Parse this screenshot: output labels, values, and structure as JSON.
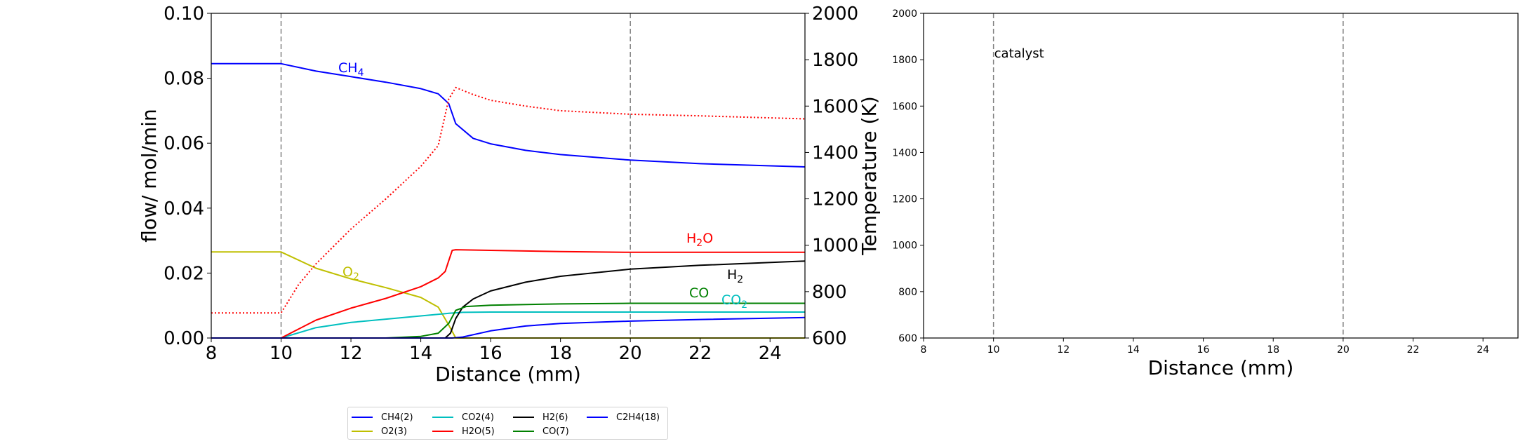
{
  "chart_data": [
    {
      "type": "line",
      "xlabel": "Distance (mm)",
      "ylabel_left": "flow/ mol/min",
      "ylabel_right": "Temperature (K)",
      "xlim": [
        8,
        25
      ],
      "ylim_left": [
        0.0,
        0.1
      ],
      "ylim_right": [
        600,
        2000
      ],
      "x_ticks": [
        "8",
        "10",
        "12",
        "14",
        "16",
        "18",
        "20",
        "22",
        "24"
      ],
      "y_ticks_left": [
        "0.00",
        "0.02",
        "0.04",
        "0.06",
        "0.08",
        "0.10"
      ],
      "y_ticks_right": [
        "600",
        "800",
        "1000",
        "1200",
        "1400",
        "1600",
        "1800",
        "2000"
      ],
      "vlines": [
        10,
        20
      ],
      "series": [
        {
          "name": "CH4(2)",
          "label": "CH",
          "sub": "4",
          "color": "#0000ff",
          "style": "solid",
          "x": [
            8,
            10,
            11,
            12,
            13,
            14,
            14.5,
            14.8,
            15,
            15.5,
            16,
            17,
            18,
            20,
            22,
            25
          ],
          "y": [
            0.0845,
            0.0845,
            0.0822,
            0.0805,
            0.0788,
            0.0768,
            0.0752,
            0.0722,
            0.066,
            0.0615,
            0.0598,
            0.0578,
            0.0565,
            0.0548,
            0.0537,
            0.0527
          ]
        },
        {
          "name": "O2(3)",
          "label": "O",
          "sub": "2",
          "color": "#bfbf00",
          "style": "solid",
          "x": [
            8,
            10,
            11,
            12,
            13,
            14,
            14.5,
            14.8,
            15,
            25
          ],
          "y": [
            0.0265,
            0.0265,
            0.0215,
            0.0182,
            0.0155,
            0.0125,
            0.0095,
            0.004,
            0.0,
            0.0
          ]
        },
        {
          "name": "CO2(4)",
          "label": "CO",
          "sub": "2",
          "color": "#00bfbf",
          "style": "solid",
          "x": [
            8,
            10,
            11,
            12,
            13,
            14,
            14.8,
            15.2,
            16,
            18,
            20,
            25
          ],
          "y": [
            0.0,
            0.0,
            0.0032,
            0.0048,
            0.0058,
            0.0068,
            0.0076,
            0.0079,
            0.008,
            0.008,
            0.008,
            0.008
          ]
        },
        {
          "name": "H2O(5)",
          "label": "H",
          "sub": "2",
          "tail": "O",
          "color": "#ff0000",
          "style": "solid",
          "x": [
            8,
            10,
            11,
            12,
            13,
            14,
            14.5,
            14.7,
            14.8,
            14.9,
            15,
            16,
            18,
            20,
            22,
            25
          ],
          "y": [
            0.0,
            0.0,
            0.0055,
            0.0092,
            0.0122,
            0.0158,
            0.0185,
            0.0205,
            0.0238,
            0.027,
            0.0272,
            0.027,
            0.0266,
            0.0264,
            0.0264,
            0.0264
          ]
        },
        {
          "name": "H2(6)",
          "label": "H",
          "sub": "2",
          "color": "#000000",
          "style": "solid",
          "x": [
            8,
            14.7,
            14.85,
            15,
            15.2,
            15.5,
            16,
            17,
            18,
            20,
            22,
            25
          ],
          "y": [
            0.0,
            0.0,
            0.0015,
            0.006,
            0.0095,
            0.012,
            0.0145,
            0.0172,
            0.019,
            0.0212,
            0.0224,
            0.0237
          ]
        },
        {
          "name": "CO(7)",
          "label": "CO",
          "sub": "",
          "color": "#008000",
          "style": "solid",
          "x": [
            8,
            13,
            14,
            14.5,
            14.8,
            15,
            15.3,
            16,
            18,
            20,
            25
          ],
          "y": [
            0.0,
            0.0,
            0.0005,
            0.0015,
            0.0045,
            0.0085,
            0.0097,
            0.0101,
            0.0105,
            0.0107,
            0.0107
          ]
        },
        {
          "name": "C2H4(18)",
          "label": "",
          "sub": "",
          "color": "#0000ff",
          "style": "solid",
          "x": [
            8,
            14.9,
            15.2,
            16,
            17,
            18,
            20,
            22,
            25
          ],
          "y": [
            0.0,
            0.0,
            0.0003,
            0.0022,
            0.0037,
            0.0045,
            0.0052,
            0.0057,
            0.0063
          ]
        },
        {
          "name": "Temperature",
          "label": "",
          "sub": "",
          "color": "#ff0000",
          "style": "dotted",
          "axis": "right",
          "x": [
            8,
            10,
            10.5,
            11,
            12,
            13,
            14,
            14.5,
            14.8,
            15,
            15.5,
            16,
            17,
            18,
            20,
            22,
            25
          ],
          "y": [
            708,
            708,
            830,
            920,
            1070,
            1200,
            1340,
            1430,
            1630,
            1680,
            1650,
            1625,
            1600,
            1580,
            1565,
            1558,
            1545
          ]
        }
      ]
    },
    {
      "type": "line",
      "xlabel": "Distance (mm)",
      "xlim": [
        8,
        25
      ],
      "ylim": [
        600,
        2000
      ],
      "x_ticks": [
        "8",
        "10",
        "12",
        "14",
        "16",
        "18",
        "20",
        "22",
        "24"
      ],
      "y_ticks": [
        "600",
        "800",
        "1000",
        "1200",
        "1400",
        "1600",
        "1800",
        "2000"
      ],
      "vlines": [
        10,
        20
      ],
      "annotation": "catalyst",
      "series": []
    }
  ],
  "legend": {
    "items": [
      {
        "label": "CH4(2)",
        "color": "#0000ff"
      },
      {
        "label": "O2(3)",
        "color": "#bfbf00"
      },
      {
        "label": "CO2(4)",
        "color": "#00bfbf"
      },
      {
        "label": "H2O(5)",
        "color": "#ff0000"
      },
      {
        "label": "H2(6)",
        "color": "#000000"
      },
      {
        "label": "CO(7)",
        "color": "#008000"
      },
      {
        "label": "C2H4(18)",
        "color": "#0000ff"
      }
    ]
  }
}
